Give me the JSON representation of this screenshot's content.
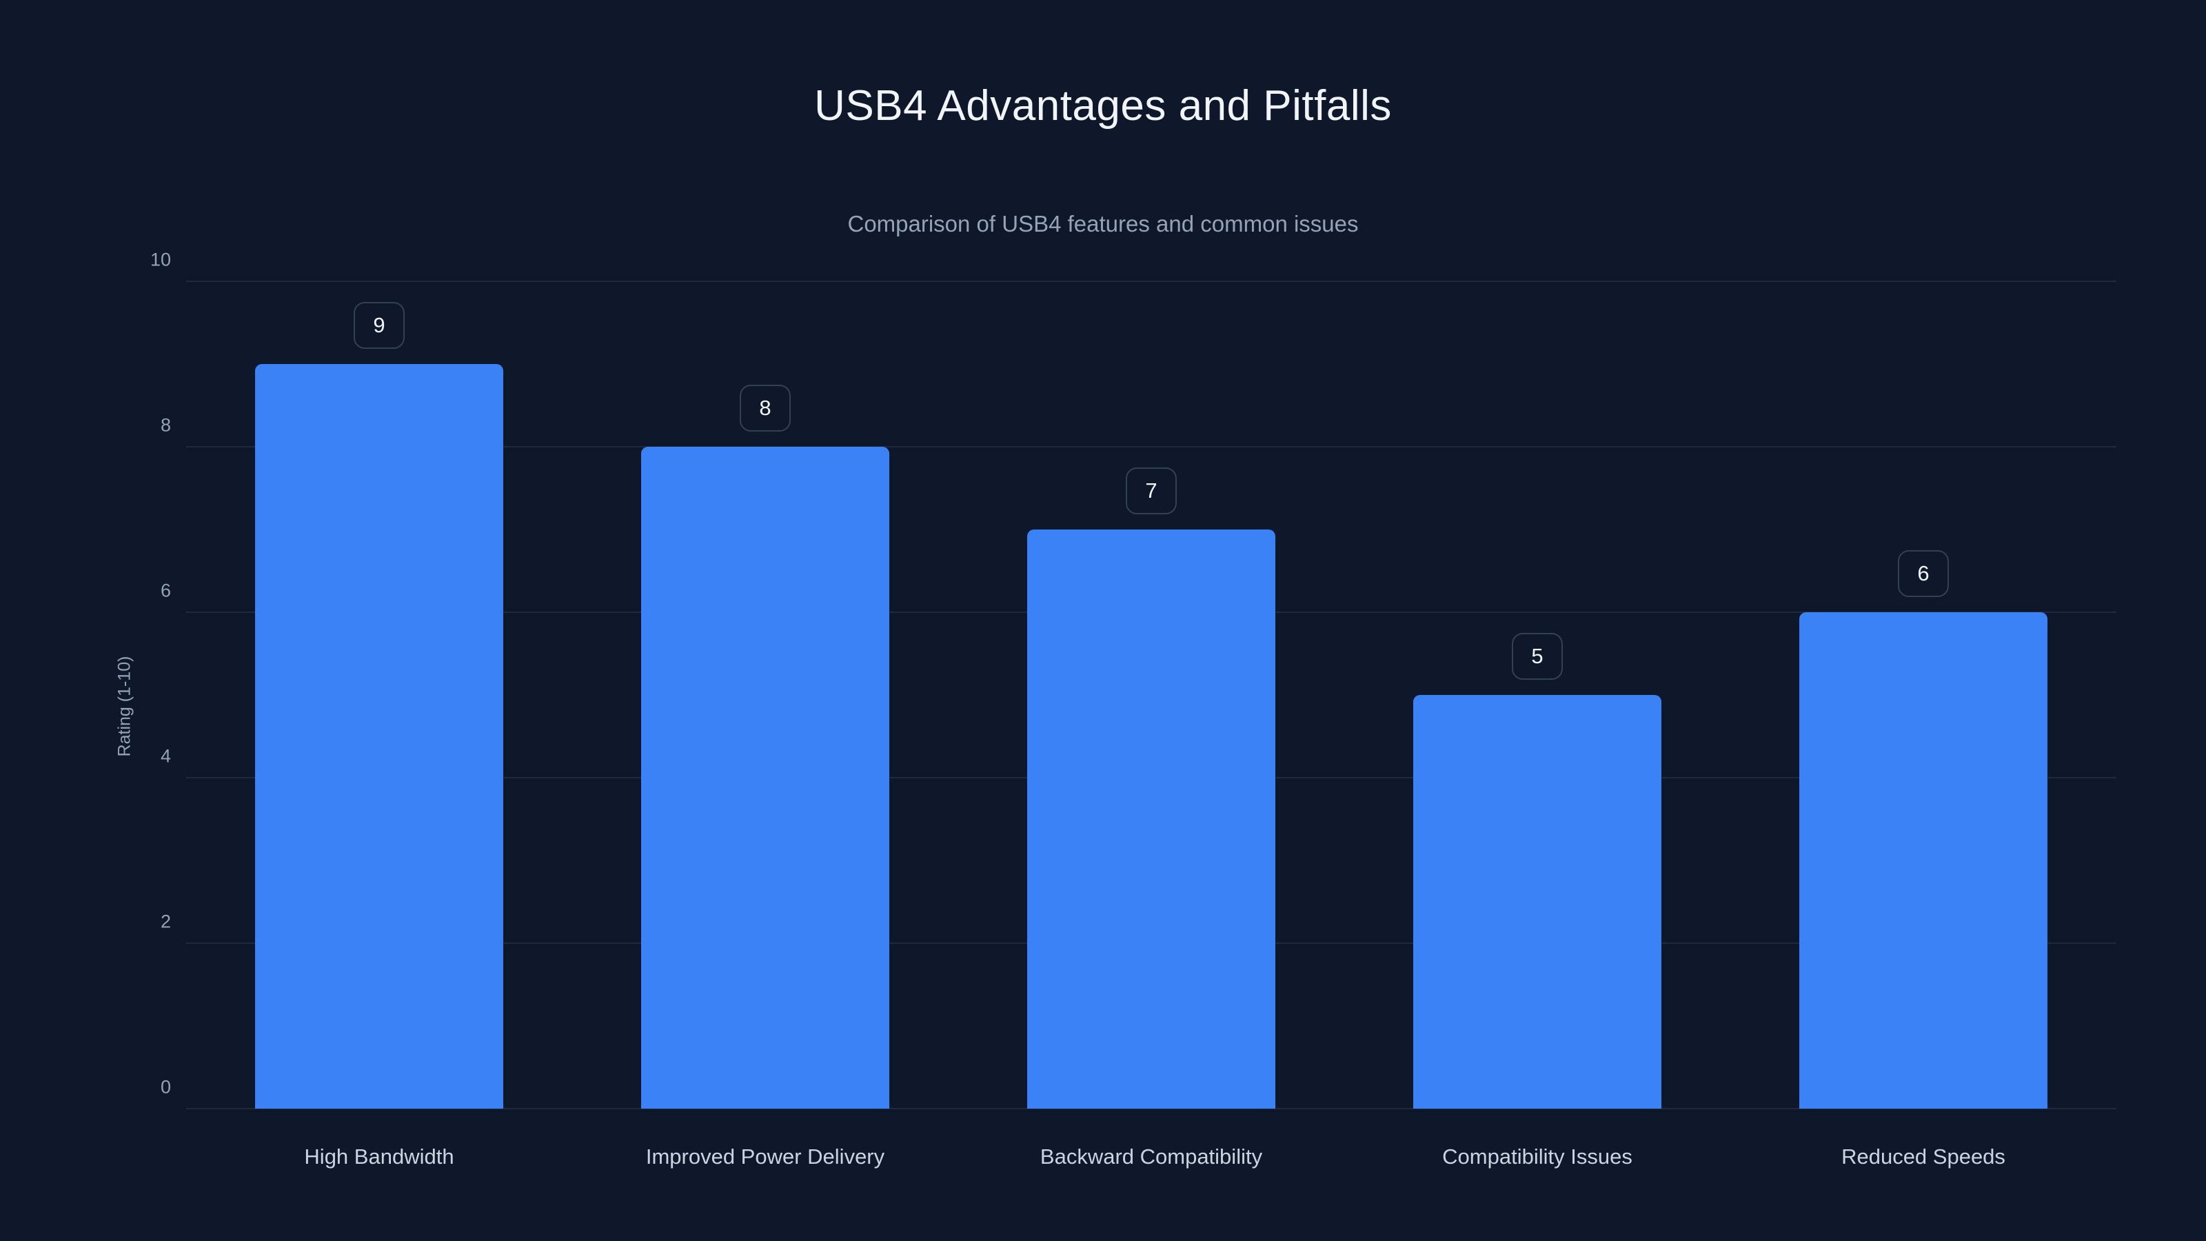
{
  "chart_data": {
    "type": "bar",
    "title": "USB4 Advantages and Pitfalls",
    "subtitle": "Comparison of USB4 features and common issues",
    "ylabel": "Rating (1-10)",
    "xlabel": "",
    "categories": [
      "High Bandwidth",
      "Improved Power Delivery",
      "Backward Compatibility",
      "Compatibility Issues",
      "Reduced Speeds"
    ],
    "values": [
      9,
      8,
      7,
      5,
      6
    ],
    "ylim": [
      0,
      10
    ],
    "yticks": [
      0,
      2,
      4,
      6,
      8,
      10
    ],
    "grid": true,
    "legend": false,
    "colors": {
      "background": "#0f172a",
      "bar": "#3b82f6",
      "gridline": "#1e293b",
      "title_text": "#f1f5f9",
      "subtitle_text": "#94a3b8",
      "axis_text": "#94a3b8",
      "category_text": "#cbd5e1",
      "badge_border": "#334155"
    }
  }
}
